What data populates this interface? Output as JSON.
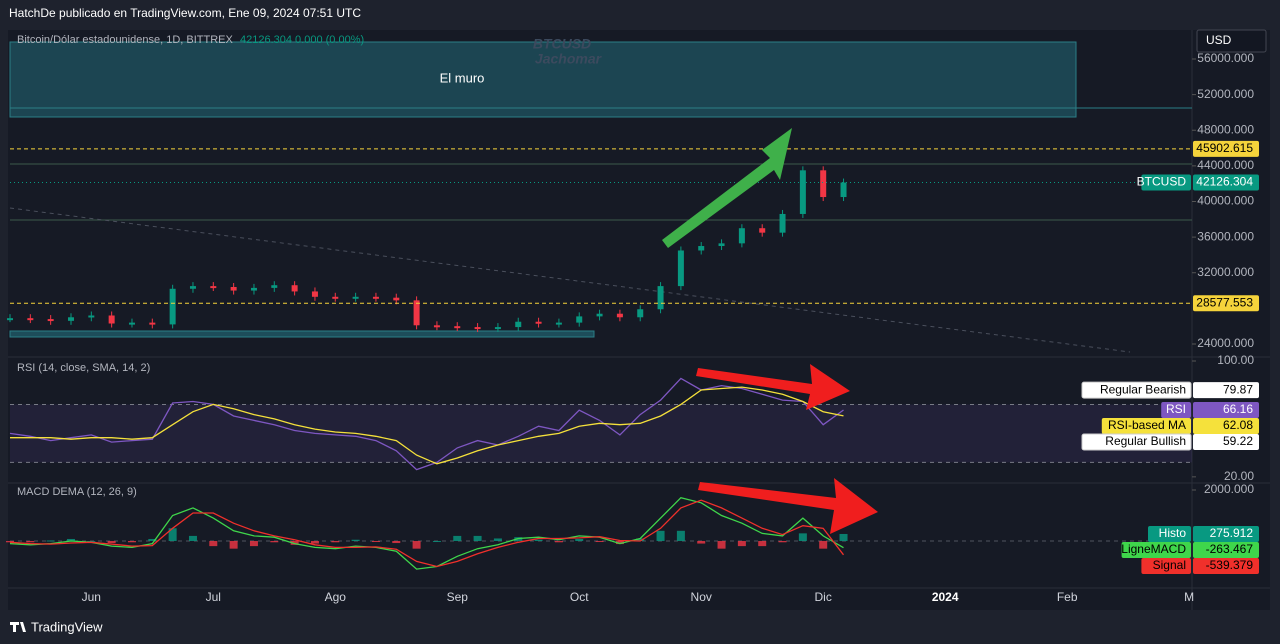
{
  "header": {
    "text": "HatchDe publicado en TradingView.com, Ene 09, 2024 07:51 UTC"
  },
  "footer": {
    "brand": "TradingView"
  },
  "currency_button": "USD",
  "chart_data": [
    {
      "type": "line",
      "title": "Bitcoin/Dólar estadounidense, 1D, BITTREX",
      "subtitle": "42126.304  0.000 (0.00%)",
      "watermark": [
        "BTCUSD",
        "Jachomar"
      ],
      "annotation": "El muro",
      "categories": [
        null,
        null,
        null,
        null,
        "Jun",
        null,
        null,
        null,
        null,
        null,
        "Jul",
        null,
        null,
        null,
        null,
        null,
        "Ago",
        null,
        null,
        null,
        null,
        null,
        "Sep",
        null,
        null,
        null,
        null,
        null,
        "Oct",
        null,
        null,
        null,
        null,
        null,
        "Nov",
        null,
        null,
        null,
        null,
        null,
        "Dic",
        null,
        null,
        null,
        null,
        null,
        "2024",
        null,
        null,
        null,
        null,
        null,
        "Feb",
        null,
        null,
        null,
        null,
        null,
        "M"
      ],
      "series": [
        {
          "name": "BTCUSD",
          "color_up": "#089981",
          "color_down": "#f23645",
          "values": [
            26900,
            26800,
            26600,
            27000,
            27200,
            26300,
            26400,
            26200,
            30200,
            30500,
            30400,
            30000,
            30300,
            30600,
            29900,
            29300,
            29200,
            29300,
            29200,
            28900,
            26100,
            26000,
            25900,
            25800,
            25900,
            26500,
            26300,
            26400,
            27100,
            27400,
            27000,
            27900,
            30500,
            34500,
            35000,
            35300,
            37000,
            36500,
            38600,
            43500,
            40500,
            42126.304,
            null,
            null,
            null,
            null,
            null,
            null,
            null,
            null,
            null,
            null,
            null,
            null,
            null,
            null,
            null,
            null,
            null
          ]
        }
      ],
      "ylim": [
        22540,
        59030
      ],
      "yticks": [
        {
          "value": 56000,
          "label": "56000.000"
        },
        {
          "value": 52000,
          "label": "52000.000"
        },
        {
          "value": 48000,
          "label": "48000.000"
        },
        {
          "value": 44000,
          "label": "44000.000"
        },
        {
          "value": 40000,
          "label": "40000.000"
        },
        {
          "value": 36000,
          "label": "36000.000"
        },
        {
          "value": 32000,
          "label": "32000.000"
        },
        {
          "value": 24000,
          "label": "24000.000"
        }
      ],
      "price_lines": [
        {
          "value": 45902.615,
          "color": "#f5d33b"
        },
        {
          "value": 28577.553,
          "color": "#f5d33b"
        }
      ]
    },
    {
      "type": "line",
      "title": "RSI (14, close, SMA, 14, 2)",
      "series": [
        {
          "name": "RSI",
          "color": "#7e57c2",
          "values": [
            50,
            48,
            45,
            47,
            49,
            44,
            45,
            46,
            71,
            72,
            70,
            62,
            59,
            56,
            52,
            50,
            49,
            48,
            45,
            38,
            25,
            30,
            40,
            45,
            42,
            48,
            55,
            52,
            66,
            59,
            49,
            63,
            73,
            88,
            80,
            83,
            81,
            77,
            73,
            72,
            56,
            66.16,
            null,
            null,
            null,
            null,
            null,
            null,
            null,
            null,
            null,
            null,
            null,
            null,
            null,
            null,
            null,
            null,
            null
          ]
        },
        {
          "name": "RSI-based MA",
          "color": "#f5e13b",
          "values": [
            47,
            47,
            47,
            46,
            47,
            47,
            46,
            47,
            56,
            65,
            70,
            67,
            63,
            60,
            56,
            53,
            51,
            50,
            48,
            45,
            35,
            29,
            33,
            38,
            42,
            45,
            48,
            50,
            55,
            57,
            56,
            57,
            62,
            70,
            80,
            81,
            82,
            80,
            77,
            72,
            65,
            62.08,
            null,
            null,
            null,
            null,
            null,
            null,
            null,
            null,
            null,
            null,
            null,
            null,
            null,
            null,
            null,
            null,
            null
          ]
        }
      ],
      "ylim": [
        15.75,
        102.76
      ],
      "yticks": [
        {
          "value": 100,
          "label": "100.00"
        },
        {
          "value": 20,
          "label": "20.00"
        }
      ],
      "band": [
        30,
        70
      ],
      "markers": [
        {
          "name": "Regular Bearish",
          "value": 79.87
        },
        {
          "name": "Regular Bullish",
          "value": 59.22
        }
      ]
    },
    {
      "type": "line",
      "title": "MACD DEMA (12, 26, 9)",
      "series": [
        {
          "name": "Histo",
          "type": "bar",
          "color_up": "#089981",
          "color_down": "#f23645",
          "values": [
            -50,
            -50,
            20,
            80,
            0,
            -80,
            -50,
            80,
            500,
            200,
            -200,
            -300,
            -200,
            -50,
            -150,
            -100,
            -50,
            50,
            -20,
            -80,
            -300,
            0,
            200,
            200,
            100,
            150,
            50,
            -50,
            80,
            -20,
            -120,
            100,
            400,
            400,
            -100,
            -300,
            -200,
            -200,
            -50,
            300,
            -300,
            275.912,
            null,
            null,
            null,
            null,
            null,
            null,
            null,
            null,
            null,
            null,
            null,
            null,
            null,
            null,
            null,
            null,
            null
          ]
        },
        {
          "name": "LigneMACD",
          "color": "#3fd64b",
          "values": [
            -100,
            -150,
            -100,
            0,
            -50,
            -200,
            -250,
            -100,
            1000,
            1300,
            900,
            400,
            200,
            150,
            -100,
            -250,
            -300,
            -200,
            -250,
            -400,
            -1100,
            -1000,
            -600,
            -300,
            -150,
            100,
            150,
            50,
            200,
            150,
            -100,
            100,
            900,
            1700,
            1500,
            1000,
            700,
            300,
            200,
            900,
            200,
            -263.467,
            null,
            null,
            null,
            null,
            null,
            null,
            null,
            null,
            null,
            null,
            null,
            null,
            null,
            null,
            null,
            null,
            null
          ]
        },
        {
          "name": "Signal",
          "color": "#f0302b",
          "values": [
            -50,
            -100,
            -120,
            -80,
            -50,
            -120,
            -200,
            -180,
            500,
            1100,
            1100,
            700,
            400,
            200,
            50,
            -150,
            -250,
            -250,
            -230,
            -320,
            -800,
            -1000,
            -800,
            -500,
            -250,
            -50,
            100,
            100,
            120,
            170,
            20,
            0,
            500,
            1300,
            1600,
            1300,
            900,
            500,
            250,
            600,
            500,
            -539.379,
            null,
            null,
            null,
            null,
            null,
            null,
            null,
            null,
            null,
            null,
            null,
            null,
            null,
            null,
            null,
            null,
            null
          ]
        }
      ],
      "ylim": [
        -1843,
        2275
      ],
      "yticks": [
        {
          "value": 2000,
          "label": "2000.000"
        }
      ],
      "zero_line": true
    }
  ]
}
